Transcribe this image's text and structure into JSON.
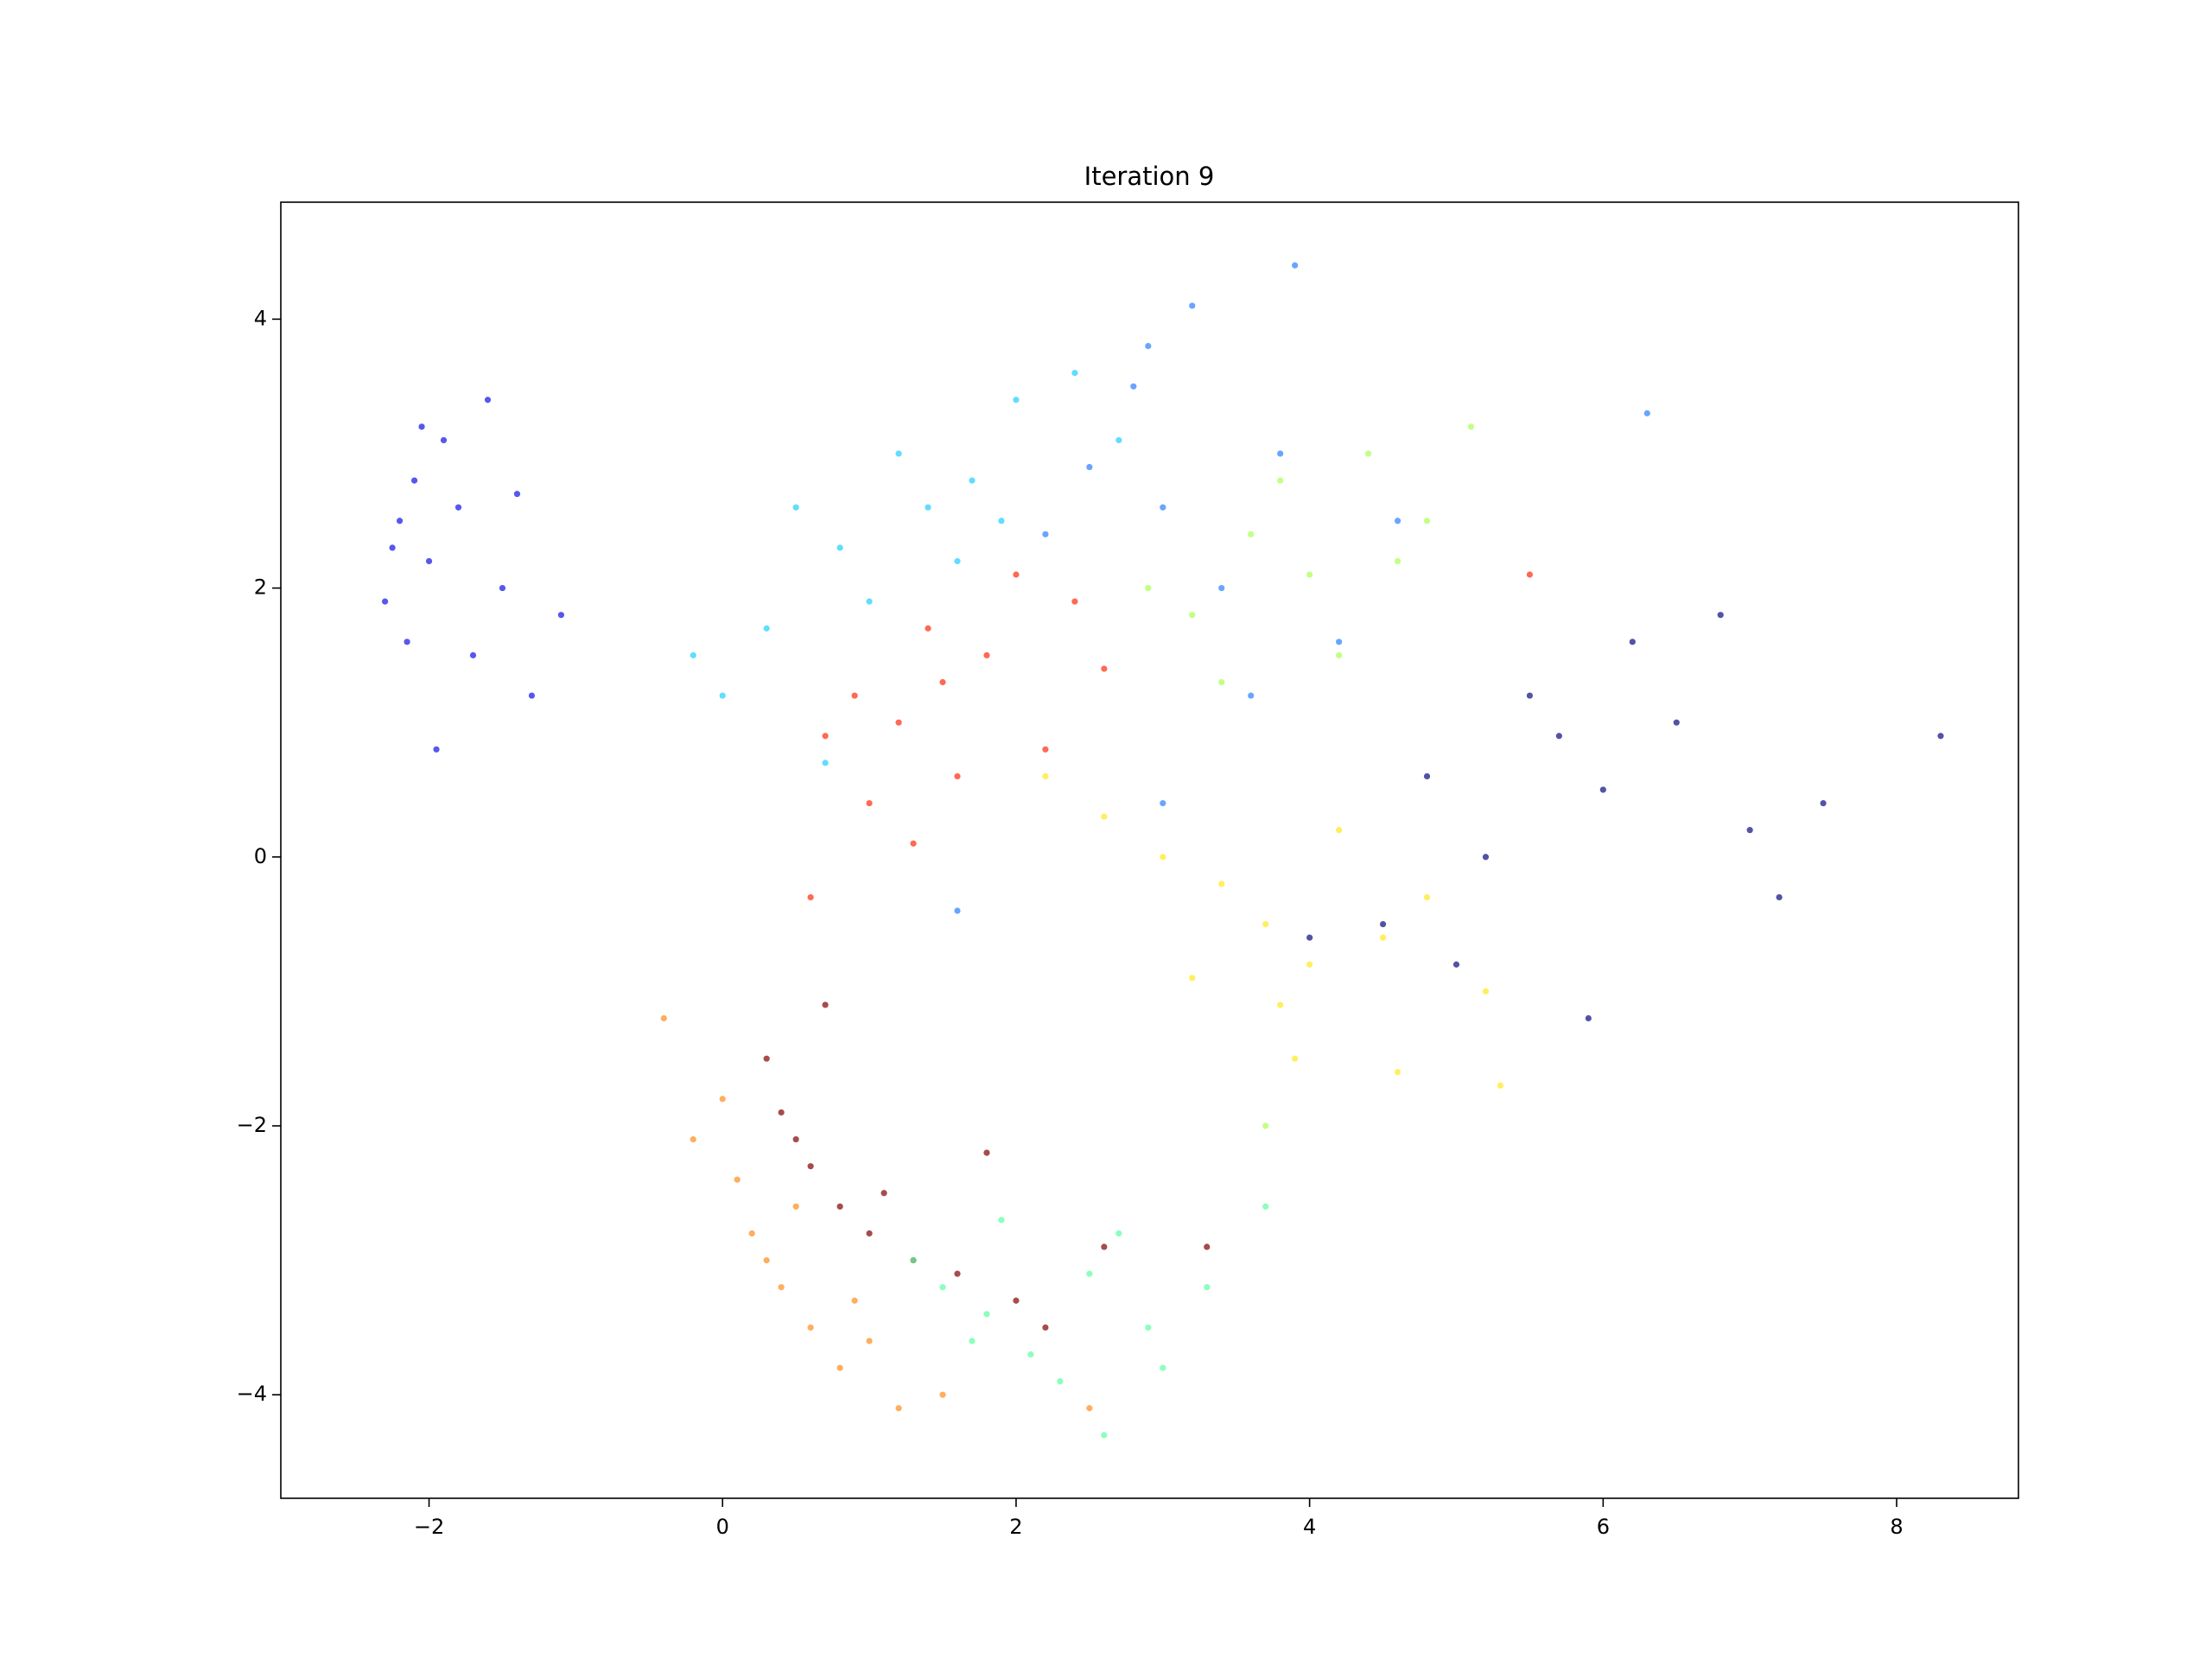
{
  "chart_data": {
    "type": "scatter",
    "title": "Iteration 9",
    "xlim": [
      -3.01,
      8.83
    ],
    "ylim": [
      -4.77,
      4.87
    ],
    "xticks": [
      {
        "value": -2,
        "label": "−2"
      },
      0,
      2,
      4,
      6,
      8
    ],
    "yticks": [
      {
        "value": -4,
        "label": "−4"
      },
      {
        "value": -2,
        "label": "−2"
      },
      0,
      2,
      4
    ],
    "grid": false,
    "alpha": 0.7,
    "series": [
      {
        "color": "#1010e8",
        "x": [
          -2.2,
          -2.1,
          -2.0,
          -1.9,
          -2.3,
          -2.15,
          -1.8,
          -1.6,
          -1.5,
          -1.3,
          -2.05,
          -1.7,
          -2.25,
          -1.4,
          -1.1,
          -1.95
        ],
        "y": [
          2.5,
          2.8,
          2.2,
          3.1,
          1.9,
          1.6,
          2.6,
          3.4,
          2.0,
          1.2,
          3.2,
          1.5,
          2.3,
          2.7,
          1.8,
          0.8
        ]
      },
      {
        "color": "#0a0a80",
        "x": [
          5.7,
          5.5,
          6.0,
          6.5,
          7.0,
          5.2,
          4.8,
          6.2,
          7.5,
          8.3,
          4.5,
          5.9,
          6.8,
          5.0,
          7.2,
          4.0
        ],
        "y": [
          0.9,
          1.2,
          0.5,
          1.0,
          0.2,
          0.0,
          0.6,
          1.6,
          0.4,
          0.9,
          -0.5,
          -1.2,
          1.8,
          -0.8,
          -0.3,
          -0.6
        ]
      },
      {
        "color": "#1ecfff",
        "x": [
          1.4,
          1.2,
          1.7,
          0.8,
          2.0,
          0.5,
          1.0,
          2.4,
          0.0,
          1.6,
          0.3,
          2.7,
          1.9,
          0.7,
          -0.2
        ],
        "y": [
          2.6,
          3.0,
          2.8,
          2.3,
          3.4,
          2.6,
          1.9,
          3.6,
          1.2,
          2.2,
          1.7,
          3.1,
          2.5,
          0.7,
          1.5
        ]
      },
      {
        "color": "#2a7fff",
        "x": [
          3.0,
          2.8,
          3.4,
          3.8,
          2.5,
          3.2,
          4.2,
          2.2,
          3.6,
          4.6,
          3.0,
          2.9,
          3.9,
          6.3,
          1.6
        ],
        "y": [
          2.6,
          3.5,
          2.0,
          3.0,
          2.9,
          4.1,
          1.6,
          2.4,
          1.2,
          2.5,
          0.4,
          3.8,
          4.4,
          3.3,
          -0.4
        ]
      },
      {
        "color": "#a8ff4e",
        "x": [
          3.6,
          4.0,
          3.2,
          4.4,
          3.8,
          4.8,
          3.4,
          4.2,
          5.1,
          2.9,
          4.6,
          3.7
        ],
        "y": [
          2.4,
          2.1,
          1.8,
          3.0,
          2.8,
          2.5,
          1.3,
          1.5,
          3.2,
          2.0,
          2.2,
          -2.0
        ]
      },
      {
        "color": "#ff2a0a",
        "x": [
          1.5,
          1.2,
          1.8,
          0.9,
          2.2,
          1.4,
          0.7,
          2.6,
          1.0,
          2.0,
          1.6,
          0.6,
          2.4,
          1.3,
          5.5
        ],
        "y": [
          1.3,
          1.0,
          1.5,
          1.2,
          0.8,
          1.7,
          0.9,
          1.4,
          0.4,
          2.1,
          0.6,
          -0.3,
          1.9,
          0.1,
          2.1
        ]
      },
      {
        "color": "#ffe81a",
        "x": [
          3.7,
          3.4,
          4.0,
          3.0,
          4.5,
          3.8,
          2.6,
          4.8,
          3.2,
          4.2,
          5.2,
          2.2,
          3.9,
          4.6,
          5.3
        ],
        "y": [
          -0.5,
          -0.2,
          -0.8,
          0.0,
          -0.6,
          -1.1,
          0.3,
          -0.3,
          -0.9,
          0.2,
          -1.0,
          0.6,
          -1.5,
          -1.6,
          -1.7
        ]
      },
      {
        "color": "#ff8a1a",
        "x": [
          0.4,
          0.2,
          0.6,
          0.1,
          -0.2,
          0.8,
          1.0,
          0.3,
          1.2,
          -0.4,
          0.5,
          1.5,
          0.0,
          0.9,
          2.5
        ],
        "y": [
          -3.2,
          -2.8,
          -3.5,
          -2.4,
          -2.1,
          -3.8,
          -3.6,
          -3.0,
          -4.1,
          -1.2,
          -2.6,
          -4.0,
          -1.8,
          -3.3,
          -4.1
        ]
      },
      {
        "color": "#800000",
        "x": [
          0.8,
          1.0,
          0.6,
          1.3,
          0.4,
          1.6,
          2.0,
          0.3,
          1.1,
          2.6,
          0.7,
          1.8,
          3.3,
          0.5,
          2.2
        ],
        "y": [
          -2.6,
          -2.8,
          -2.3,
          -3.0,
          -1.9,
          -3.1,
          -3.3,
          -1.5,
          -2.5,
          -2.9,
          -1.1,
          -2.2,
          -2.9,
          -2.1,
          -3.5
        ]
      },
      {
        "color": "#5affa0",
        "x": [
          1.8,
          1.5,
          2.1,
          1.3,
          2.5,
          2.9,
          1.9,
          3.3,
          2.3,
          3.0,
          1.7,
          3.7,
          2.6,
          2.7
        ],
        "y": [
          -3.4,
          -3.2,
          -3.7,
          -3.0,
          -3.1,
          -3.5,
          -2.7,
          -3.2,
          -3.9,
          -3.8,
          -3.6,
          -2.6,
          -4.3,
          -2.8
        ]
      }
    ]
  }
}
